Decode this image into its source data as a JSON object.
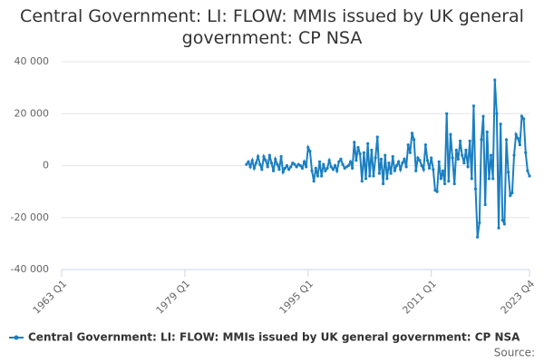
{
  "chart_data": {
    "type": "line",
    "title": "Central Government: LI: FLOW: MMIs issued by UK general government: CP NSA",
    "source": "Source:",
    "xlim": [
      "1963 Q1",
      "2023 Q4"
    ],
    "xticks": [
      "1963 Q1",
      "1979 Q1",
      "1995 Q1",
      "2011 Q1",
      "2023 Q4"
    ],
    "ylim": [
      -40000,
      40000
    ],
    "yticks": [
      {
        "value": -40000,
        "label": "-40 000"
      },
      {
        "value": -20000,
        "label": "-20 000"
      },
      0,
      {
        "value": 20000,
        "label": "20 000"
      },
      {
        "value": 40000,
        "label": "40 000"
      }
    ],
    "grid": true,
    "legend": "bottom",
    "x": [
      "1987 Q1",
      "1987 Q2",
      "1987 Q3",
      "1987 Q4",
      "1988 Q1",
      "1988 Q2",
      "1988 Q3",
      "1988 Q4",
      "1989 Q1",
      "1989 Q2",
      "1989 Q3",
      "1989 Q4",
      "1990 Q1",
      "1990 Q2",
      "1990 Q3",
      "1990 Q4",
      "1991 Q1",
      "1991 Q2",
      "1991 Q3",
      "1991 Q4",
      "1992 Q1",
      "1992 Q2",
      "1992 Q3",
      "1992 Q4",
      "1993 Q1",
      "1993 Q2",
      "1993 Q3",
      "1993 Q4",
      "1994 Q1",
      "1994 Q2",
      "1994 Q3",
      "1994 Q4",
      "1995 Q1",
      "1995 Q2",
      "1995 Q3",
      "1995 Q4",
      "1996 Q1",
      "1996 Q2",
      "1996 Q3",
      "1996 Q4",
      "1997 Q1",
      "1997 Q2",
      "1997 Q3",
      "1997 Q4",
      "1998 Q1",
      "1998 Q2",
      "1998 Q3",
      "1998 Q4",
      "1999 Q1",
      "1999 Q2",
      "1999 Q3",
      "1999 Q4",
      "2000 Q1",
      "2000 Q2",
      "2000 Q3",
      "2000 Q4",
      "2001 Q1",
      "2001 Q2",
      "2001 Q3",
      "2001 Q4",
      "2002 Q1",
      "2002 Q2",
      "2002 Q3",
      "2002 Q4",
      "2003 Q1",
      "2003 Q2",
      "2003 Q3",
      "2003 Q4",
      "2004 Q1",
      "2004 Q2",
      "2004 Q3",
      "2004 Q4",
      "2005 Q1",
      "2005 Q2",
      "2005 Q3",
      "2005 Q4",
      "2006 Q1",
      "2006 Q2",
      "2006 Q3",
      "2006 Q4",
      "2007 Q1",
      "2007 Q2",
      "2007 Q3",
      "2007 Q4",
      "2008 Q1",
      "2008 Q2",
      "2008 Q3",
      "2008 Q4",
      "2009 Q1",
      "2009 Q2",
      "2009 Q3",
      "2009 Q4",
      "2010 Q1",
      "2010 Q2",
      "2010 Q3",
      "2010 Q4",
      "2011 Q1",
      "2011 Q2",
      "2011 Q3",
      "2011 Q4",
      "2012 Q1",
      "2012 Q2",
      "2012 Q3",
      "2012 Q4",
      "2013 Q1",
      "2013 Q2",
      "2013 Q3",
      "2013 Q4",
      "2014 Q1",
      "2014 Q2",
      "2014 Q3",
      "2014 Q4",
      "2015 Q1",
      "2015 Q2",
      "2015 Q3",
      "2015 Q4",
      "2016 Q1",
      "2016 Q2",
      "2016 Q3",
      "2016 Q4",
      "2017 Q1",
      "2017 Q2",
      "2017 Q3",
      "2017 Q4",
      "2018 Q1",
      "2018 Q2",
      "2018 Q3",
      "2018 Q4",
      "2019 Q1",
      "2019 Q2",
      "2019 Q3",
      "2019 Q4",
      "2020 Q1",
      "2020 Q2",
      "2020 Q3",
      "2020 Q4",
      "2021 Q1",
      "2021 Q2",
      "2021 Q3",
      "2021 Q4",
      "2022 Q1",
      "2022 Q2",
      "2022 Q3",
      "2022 Q4",
      "2023 Q1",
      "2023 Q2",
      "2023 Q3",
      "2023 Q4"
    ],
    "series": [
      {
        "name": "Central Government: LI: FLOW: MMIs issued by UK general government: CP NSA",
        "color": "#1a7fc1",
        "values": [
          500,
          1500,
          -500,
          2000,
          -1000,
          1000,
          3500,
          500,
          -1500,
          3500,
          2000,
          -500,
          4000,
          1000,
          -2000,
          2500,
          500,
          -1500,
          3500,
          -2500,
          -1000,
          0,
          -1500,
          -500,
          1000,
          500,
          -500,
          500,
          0,
          -1000,
          1500,
          -500,
          7000,
          5500,
          -2000,
          -6000,
          -1000,
          -4000,
          1500,
          -4000,
          500,
          -2000,
          -1000,
          2000,
          -500,
          -1500,
          0,
          -2000,
          1500,
          2500,
          500,
          -1000,
          -500,
          0,
          1500,
          -1000,
          9000,
          2000,
          7000,
          4500,
          -6000,
          5000,
          -5000,
          8500,
          -4000,
          6000,
          -4000,
          3000,
          11000,
          -3000,
          2500,
          -7000,
          4000,
          -5000,
          1000,
          -3000,
          3500,
          -2000,
          0,
          1500,
          -1500,
          1000,
          2500,
          -500,
          8000,
          5000,
          12500,
          10000,
          -2000,
          3000,
          2000,
          0,
          -1500,
          8000,
          2000,
          -1000,
          3000,
          -1500,
          -9500,
          -10000,
          1500,
          -5000,
          -2000,
          -7000,
          20000,
          -6000,
          12000,
          3000,
          -7000,
          6000,
          2500,
          9500,
          4000,
          1000,
          6000,
          -500,
          9500,
          -5000,
          23000,
          -9000,
          -27500,
          -22000,
          10000,
          19000,
          -15000,
          13000,
          -5000,
          4000,
          -5000,
          33000,
          20000,
          -24000,
          16000,
          -21000,
          -22500,
          10000,
          -2500,
          -11500,
          -10500,
          4000,
          12000,
          10500,
          8000,
          19000,
          18000,
          5000,
          -2000,
          -4000
        ]
      }
    ]
  }
}
